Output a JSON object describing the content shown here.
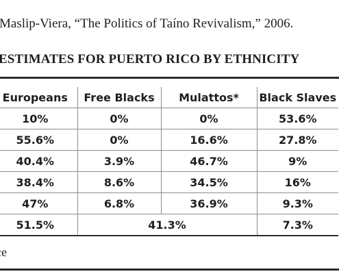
{
  "citation": "Maslip-Viera, “The Politics of Taíno Revivalism,” 2006.",
  "table_title": "ESTIMATES FOR PUERTO RICO BY ETHNICITY",
  "table": {
    "headers": [
      "Europeans",
      "Free Blacks",
      "Mulattos*",
      "Black Slaves"
    ],
    "rows": [
      [
        "10%",
        "0%",
        "0%",
        "53.6%"
      ],
      [
        "55.6%",
        "0%",
        "16.6%",
        "27.8%"
      ],
      [
        "40.4%",
        "3.9%",
        "46.7%",
        "9%"
      ],
      [
        "38.4%",
        "8.6%",
        "34.5%",
        "16%"
      ],
      [
        "47%",
        "6.8%",
        "36.9%",
        "9.3%"
      ],
      [
        "51.5%",
        "41.3%",
        "7.3%"
      ]
    ]
  },
  "source_fragment": "ce"
}
